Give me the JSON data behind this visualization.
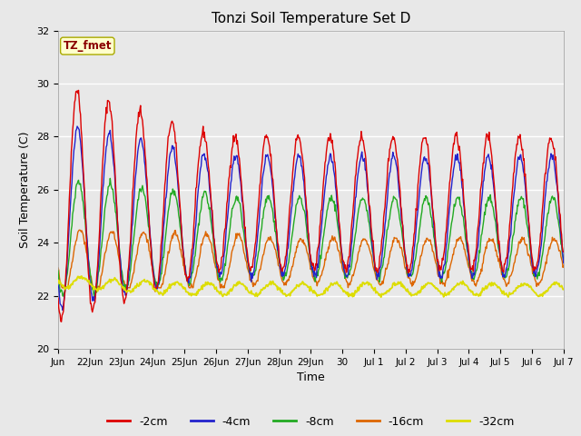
{
  "title": "Tonzi Soil Temperature Set D",
  "xlabel": "Time",
  "ylabel": "Soil Temperature (C)",
  "ylim": [
    20,
    32
  ],
  "background_color": "#e8e8e8",
  "annotation_text": "TZ_fmet",
  "annotation_color": "#8b0000",
  "annotation_bg": "#ffffcc",
  "annotation_edge": "#aaaa00",
  "series_colors": {
    "-2cm": "#dd0000",
    "-4cm": "#2222cc",
    "-8cm": "#22aa22",
    "-16cm": "#dd6600",
    "-32cm": "#dddd00"
  },
  "series_labels": [
    "-2cm",
    "-4cm",
    "-8cm",
    "-16cm",
    "-32cm"
  ],
  "tick_labels": [
    "Jun",
    "22Jun",
    "23Jun",
    "24Jun",
    "25Jun",
    "26Jun",
    "27Jun",
    "28Jun",
    "29Jun",
    "30",
    "Jul 1",
    "Jul 2",
    "Jul 3",
    "Jul 4",
    "Jul 5",
    "Jul 6",
    "Jul 7"
  ],
  "tick_positions": [
    0,
    1,
    2,
    3,
    4,
    5,
    6,
    7,
    8,
    9,
    10,
    11,
    12,
    13,
    14,
    15,
    16
  ],
  "ytick_positions": [
    20,
    22,
    24,
    26,
    28,
    30,
    32
  ],
  "grid_color": "#ffffff",
  "linewidth": 1.0,
  "figsize": [
    6.4,
    4.8
  ],
  "dpi": 100
}
